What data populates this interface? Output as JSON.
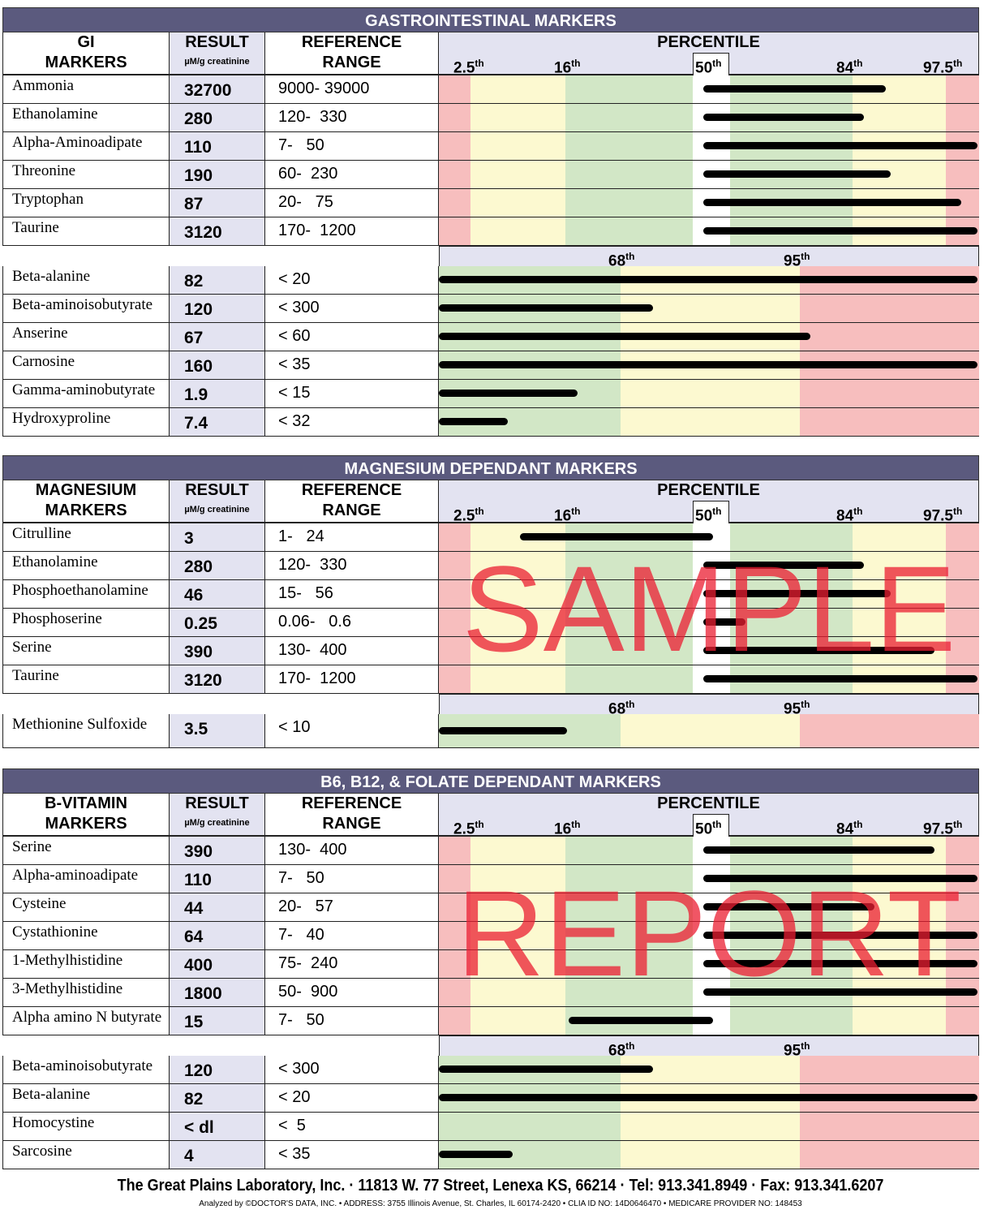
{
  "colors": {
    "title_bar": "#5b5a7e",
    "header_bg": "#e3e3f1",
    "red": "#f7bebe",
    "yellow": "#fcf9d0",
    "green": "#d2e7c6",
    "watermark": "#eb1e32"
  },
  "percentile": {
    "title": "PERCENTILE",
    "ticks": [
      "2.5",
      "16",
      "50",
      "84",
      "97.5"
    ],
    "suffix": "th",
    "threshold_ticks": [
      "68",
      "95"
    ]
  },
  "result_header": "RESULT",
  "unit": "µM/g creatinine",
  "ref_header": [
    "REFERENCE",
    "RANGE"
  ],
  "sections": [
    {
      "title": "GASTROINTESTINAL MARKERS",
      "col1": [
        "GI",
        "MARKERS"
      ],
      "rows": [
        {
          "name": "Ammonia",
          "result": "32700",
          "ref": "9000- 39000",
          "bar": [
            0.49,
            0.83
          ]
        },
        {
          "name": "Ethanolamine",
          "result": "280",
          "ref": "120-  330",
          "bar": [
            0.49,
            0.79
          ]
        },
        {
          "name": "Alpha-Aminoadipate",
          "result": "110",
          "ref": "7-   50",
          "bar": [
            0.49,
            1.0
          ]
        },
        {
          "name": "Threonine",
          "result": "190",
          "ref": "60-  230",
          "bar": [
            0.49,
            0.84
          ]
        },
        {
          "name": "Tryptophan",
          "result": "87",
          "ref": "20-   75",
          "bar": [
            0.49,
            0.97
          ]
        },
        {
          "name": "Taurine",
          "result": "3120",
          "ref": "170-  1200",
          "bar": [
            0.49,
            1.0
          ]
        }
      ],
      "threshold_rows": [
        {
          "name": "Beta-alanine",
          "result": "82",
          "ref": "< 20",
          "bar": [
            0,
            1.0
          ]
        },
        {
          "name": "Beta-aminoisobutyrate",
          "result": "120",
          "ref": "< 300",
          "bar": [
            0,
            0.4
          ]
        },
        {
          "name": "Anserine",
          "result": "67",
          "ref": "< 60",
          "bar": [
            0,
            0.69
          ]
        },
        {
          "name": "Carnosine",
          "result": "160",
          "ref": "< 35",
          "bar": [
            0,
            1.0
          ]
        },
        {
          "name": "Gamma-aminobutyrate",
          "result": "1.9",
          "ref": "< 15",
          "bar": [
            0,
            0.26
          ]
        },
        {
          "name": "Hydroxyproline",
          "result": "7.4",
          "ref": "< 32",
          "bar": [
            0,
            0.13
          ]
        }
      ]
    },
    {
      "title": "MAGNESIUM DEPENDANT MARKERS",
      "col1": [
        "MAGNESIUM",
        "MARKERS"
      ],
      "rows": [
        {
          "name": "Citrulline",
          "result": "3",
          "ref": "1-   24",
          "bar": [
            0.15,
            0.51
          ]
        },
        {
          "name": "Ethanolamine",
          "result": "280",
          "ref": "120-  330",
          "bar": [
            0.49,
            0.79
          ]
        },
        {
          "name": "Phosphoethanolamine",
          "result": "46",
          "ref": "15-   56",
          "bar": [
            0.49,
            0.84
          ]
        },
        {
          "name": "Phosphoserine",
          "result": "0.25",
          "ref": "0.06-   0.6",
          "bar": [
            0.49,
            0.57
          ]
        },
        {
          "name": "Serine",
          "result": "390",
          "ref": "130-  400",
          "bar": [
            0.49,
            0.92
          ]
        },
        {
          "name": "Taurine",
          "result": "3120",
          "ref": "170-  1200",
          "bar": [
            0.49,
            1.0
          ]
        }
      ],
      "threshold_rows": [
        {
          "name": "Methionine Sulfoxide",
          "result": "3.5",
          "ref": "< 10",
          "bar": [
            0,
            0.24
          ]
        }
      ]
    },
    {
      "title": "B6, B12, & FOLATE DEPENDANT MARKERS",
      "col1": [
        "B-VITAMIN",
        "MARKERS"
      ],
      "rows": [
        {
          "name": "Serine",
          "result": "390",
          "ref": "130-  400",
          "bar": [
            0.49,
            0.92
          ]
        },
        {
          "name": "Alpha-aminoadipate",
          "result": "110",
          "ref": "7-   50",
          "bar": [
            0.49,
            1.0
          ]
        },
        {
          "name": "Cysteine",
          "result": "44",
          "ref": "20-   57",
          "bar": [
            0.49,
            0.81
          ]
        },
        {
          "name": "Cystathionine",
          "result": "64",
          "ref": "7-   40",
          "bar": [
            0.49,
            1.0
          ]
        },
        {
          "name": "1-Methylhistidine",
          "result": "400",
          "ref": "75-  240",
          "bar": [
            0.49,
            1.0
          ]
        },
        {
          "name": "3-Methylhistidine",
          "result": "1800",
          "ref": "50-  900",
          "bar": [
            0.49,
            1.0
          ]
        },
        {
          "name": "Alpha amino N butyrate",
          "result": "15",
          "ref": "7-   50",
          "bar": [
            0.24,
            0.51
          ]
        }
      ],
      "threshold_rows": [
        {
          "name": "Beta-aminoisobutyrate",
          "result": "120",
          "ref": "< 300",
          "bar": [
            0,
            0.4
          ]
        },
        {
          "name": "Beta-alanine",
          "result": "82",
          "ref": "< 20",
          "bar": [
            0,
            1.0
          ]
        },
        {
          "name": "Homocystine",
          "result": "< dl",
          "ref": "<  5",
          "bar": null
        },
        {
          "name": "Sarcosine",
          "result": "4",
          "ref": "< 35",
          "bar": [
            0,
            0.14
          ]
        }
      ]
    }
  ],
  "watermark": [
    "SAMPLE",
    "REPORT"
  ],
  "footer": {
    "line1": "The Great Plains Laboratory, Inc. · 11813 W. 77 Street, Lenexa KS, 66214 · Tel:  913.341.8949 · Fax:  913.341.6207",
    "line2": "Analyzed by  ©DOCTOR'S DATA, INC. • ADDRESS: 3755 Illinois Avenue, St. Charles, IL 60174-2420 • CLIA  ID NO: 14D0646470 • MEDICARE PROVIDER NO: 148453"
  }
}
